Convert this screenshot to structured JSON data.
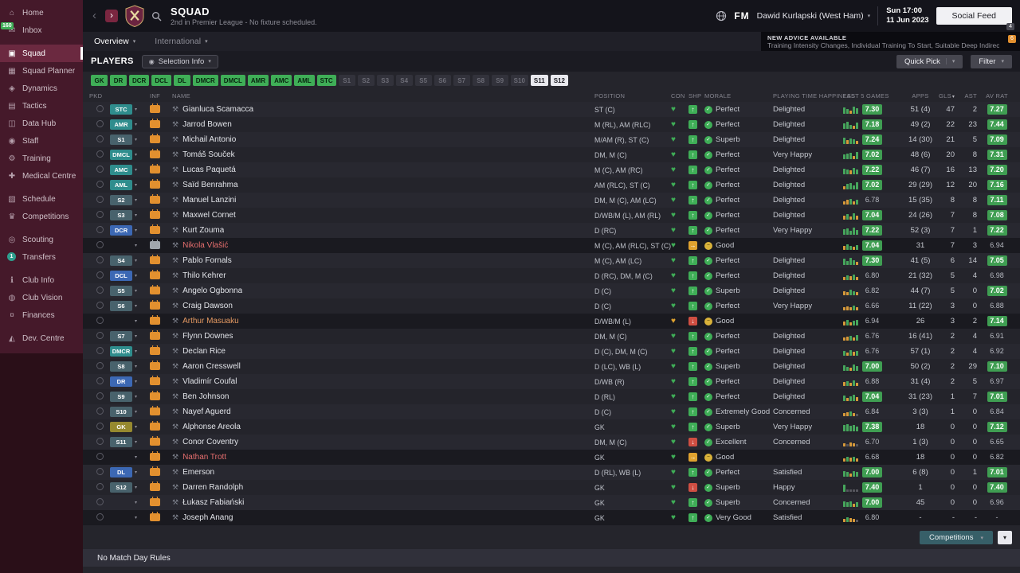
{
  "colors": {
    "claret": "#45192a",
    "accent_green": "#3fae57",
    "badge_green": "#3f9e52",
    "warn_orange": "#d79a3a",
    "alert_red": "#cf4e42",
    "def_blue": "#3c68b4",
    "att_teal": "#2f8d8d"
  },
  "topbar": {
    "title": "SQUAD",
    "subtitle": "2nd in Premier League - No fixture scheduled.",
    "fm": "FM",
    "manager": "Dawid Kurlapski (West Ham)",
    "time": "Sun 17:00",
    "date": "11 Jun 2023",
    "social": "Social Feed",
    "social_badge": "4"
  },
  "ticker": {
    "kicker": "NEW ADVICE AVAILABLE",
    "text": "Training Intensity Changes, Individual Training To Start, Suitable Deep Indirect Free-Kick Takers",
    "badge": "6"
  },
  "tabs": [
    {
      "label": "Overview"
    },
    {
      "label": "International"
    }
  ],
  "sidebar": {
    "items": [
      {
        "key": "home",
        "label": "Home",
        "icon": "⌂"
      },
      {
        "key": "inbox",
        "label": "Inbox",
        "icon": "✉",
        "badge": "160"
      },
      {
        "key": "squad",
        "label": "Squad",
        "icon": "▣",
        "selected": true,
        "gap": true
      },
      {
        "key": "squad-planner",
        "label": "Squad Planner",
        "icon": "▦"
      },
      {
        "key": "dynamics",
        "label": "Dynamics",
        "icon": "◈"
      },
      {
        "key": "tactics",
        "label": "Tactics",
        "icon": "▤"
      },
      {
        "key": "data-hub",
        "label": "Data Hub",
        "icon": "◫"
      },
      {
        "key": "staff",
        "label": "Staff",
        "icon": "◉"
      },
      {
        "key": "training",
        "label": "Training",
        "icon": "⚙"
      },
      {
        "key": "medical-centre",
        "label": "Medical Centre",
        "icon": "✚"
      },
      {
        "key": "schedule",
        "label": "Schedule",
        "icon": "▧",
        "gap": true
      },
      {
        "key": "competitions",
        "label": "Competitions",
        "icon": "♛"
      },
      {
        "key": "scouting",
        "label": "Scouting",
        "icon": "◎",
        "gap": true
      },
      {
        "key": "transfers",
        "label": "Transfers",
        "icon": "⇄",
        "badge": "1",
        "badge_circle": true
      },
      {
        "key": "club-info",
        "label": "Club Info",
        "icon": "ℹ",
        "gap": true
      },
      {
        "key": "club-vision",
        "label": "Club Vision",
        "icon": "◍"
      },
      {
        "key": "finances",
        "label": "Finances",
        "icon": "¤"
      },
      {
        "key": "dev-centre",
        "label": "Dev. Centre",
        "icon": "◭",
        "gap": true
      }
    ]
  },
  "players_bar": {
    "title": "PLAYERS",
    "selection": "Selection Info",
    "quick_pick": "Quick Pick",
    "filter": "Filter"
  },
  "filters": {
    "positions": [
      "GK",
      "DR",
      "DCR",
      "DCL",
      "DL",
      "DMCR",
      "DMCL",
      "AMR",
      "AMC",
      "AML",
      "STC"
    ],
    "subs_inactive": [
      "S1",
      "S2",
      "S3",
      "S4",
      "S5",
      "S6",
      "S7",
      "S8",
      "S9",
      "S10"
    ],
    "subs_selected": [
      "S11",
      "S12"
    ]
  },
  "table": {
    "columns": [
      "PKD",
      "INF",
      "NAME",
      "POSITION",
      "CON",
      "SHP",
      "MORALE",
      "PLAYING TIME HAPPINESS",
      "LAST 5 GAMES",
      "APPS",
      "GLS",
      "AST",
      "AV RAT"
    ],
    "rows": [
      {
        "pkd": "STC",
        "kind": "att",
        "inf": "holiday",
        "name": "Gianluca Scamacca",
        "name_color": "",
        "pos": "ST (C)",
        "con": "ok",
        "shp": "up",
        "morale": "Perfect",
        "tone": "good",
        "pt": "Delighted",
        "l5": "7.30",
        "bars": [
          "g8",
          "g6",
          "o4",
          "g9",
          "g7"
        ],
        "apps": "51 (4)",
        "gls": "47",
        "ast": "2",
        "avr": "7.27",
        "dim": false
      },
      {
        "pkd": "AMR",
        "kind": "att",
        "inf": "holiday",
        "name": "Jarrod Bowen",
        "name_color": "",
        "pos": "M (RL), AM (RLC)",
        "con": "ok",
        "shp": "up",
        "morale": "Perfect",
        "tone": "good",
        "pt": "Delighted",
        "l5": "7.18",
        "bars": [
          "g7",
          "g9",
          "g5",
          "o4",
          "g8"
        ],
        "apps": "49 (2)",
        "gls": "22",
        "ast": "23",
        "avr": "7.44",
        "dim": false
      },
      {
        "pkd": "S1",
        "kind": "sub",
        "inf": "holiday",
        "name": "Michail Antonio",
        "name_color": "",
        "pos": "M/AM (R), ST (C)",
        "con": "ok",
        "shp": "up",
        "morale": "Superb",
        "tone": "good",
        "pt": "Delighted",
        "l5": "7.24",
        "bars": [
          "g8",
          "o5",
          "g7",
          "g6",
          "o4"
        ],
        "apps": "14 (30)",
        "gls": "21",
        "ast": "5",
        "avr": "7.09",
        "dim": false
      },
      {
        "pkd": "DMCL",
        "kind": "att",
        "inf": "holiday",
        "name": "Tomáš Souček",
        "name_color": "",
        "pos": "DM, M (C)",
        "con": "ok",
        "shp": "up",
        "morale": "Perfect",
        "tone": "good",
        "pt": "Very Happy",
        "l5": "7.02",
        "bars": [
          "g6",
          "g7",
          "g8",
          "o4",
          "g9"
        ],
        "apps": "48 (6)",
        "gls": "20",
        "ast": "8",
        "avr": "7.31",
        "dim": false
      },
      {
        "pkd": "AMC",
        "kind": "att",
        "inf": "holiday",
        "name": "Lucas Paquetá",
        "name_color": "",
        "pos": "M (C), AM (RC)",
        "con": "ok",
        "shp": "up",
        "morale": "Perfect",
        "tone": "good",
        "pt": "Delighted",
        "l5": "7.22",
        "bars": [
          "g7",
          "g6",
          "o5",
          "g8",
          "g6"
        ],
        "apps": "46 (7)",
        "gls": "16",
        "ast": "13",
        "avr": "7.20",
        "dim": false
      },
      {
        "pkd": "AML",
        "kind": "att",
        "inf": "holiday",
        "name": "Saïd Benrahma",
        "name_color": "",
        "pos": "AM (RLC), ST (C)",
        "con": "ok",
        "shp": "up",
        "morale": "Perfect",
        "tone": "good",
        "pt": "Delighted",
        "l5": "7.02",
        "bars": [
          "o4",
          "g7",
          "g8",
          "g5",
          "g9"
        ],
        "apps": "29 (29)",
        "gls": "12",
        "ast": "20",
        "avr": "7.16",
        "dim": false
      },
      {
        "pkd": "S2",
        "kind": "sub",
        "inf": "holiday",
        "name": "Manuel Lanzini",
        "name_color": "",
        "pos": "DM, M (C), AM (LC)",
        "con": "ok",
        "shp": "up",
        "morale": "Perfect",
        "tone": "good",
        "pt": "Delighted",
        "l5": "6.78",
        "bars": [
          "o4",
          "o6",
          "g7",
          "o4",
          "g6"
        ],
        "apps": "15 (35)",
        "gls": "8",
        "ast": "8",
        "avr": "7.11",
        "dim": false
      },
      {
        "pkd": "S3",
        "kind": "sub",
        "inf": "holiday",
        "name": "Maxwel Cornet",
        "name_color": "",
        "pos": "D/WB/M (L), AM (RL)",
        "con": "ok",
        "shp": "up",
        "morale": "Perfect",
        "tone": "good",
        "pt": "Delighted",
        "l5": "7.04",
        "bars": [
          "o5",
          "g7",
          "o4",
          "g8",
          "o5"
        ],
        "apps": "24 (26)",
        "gls": "7",
        "ast": "8",
        "avr": "7.08",
        "dim": false
      },
      {
        "pkd": "DCR",
        "kind": "def",
        "inf": "holiday",
        "name": "Kurt Zouma",
        "name_color": "",
        "pos": "D (RC)",
        "con": "ok",
        "shp": "up",
        "morale": "Perfect",
        "tone": "good",
        "pt": "Very Happy",
        "l5": "7.22",
        "bars": [
          "g7",
          "g8",
          "g5",
          "g9",
          "g6"
        ],
        "apps": "52 (3)",
        "gls": "7",
        "ast": "1",
        "avr": "7.22",
        "dim": false
      },
      {
        "pkd": "",
        "kind": "none",
        "inf": "gray",
        "name": "Nikola Vlašić",
        "name_color": "#e56e6e",
        "pos": "M (C), AM (RLC), ST (C)",
        "con": "ok",
        "shp": "flat",
        "morale": "Good",
        "tone": "ok",
        "pt": "",
        "l5": "7.04",
        "bars": [
          "o5",
          "g7",
          "g5",
          "o4",
          "g6"
        ],
        "apps": "31",
        "gls": "7",
        "ast": "3",
        "avr": "6.94",
        "dim": true
      },
      {
        "pkd": "S4",
        "kind": "sub",
        "inf": "holiday",
        "name": "Pablo Fornals",
        "name_color": "",
        "pos": "M (C), AM (LC)",
        "con": "ok",
        "shp": "up",
        "morale": "Perfect",
        "tone": "good",
        "pt": "Delighted",
        "l5": "7.30",
        "bars": [
          "g8",
          "g5",
          "g9",
          "g6",
          "o4"
        ],
        "apps": "41 (5)",
        "gls": "6",
        "ast": "14",
        "avr": "7.05",
        "dim": false
      },
      {
        "pkd": "DCL",
        "kind": "def",
        "inf": "holiday",
        "name": "Thilo Kehrer",
        "name_color": "",
        "pos": "D (RC), DM, M (C)",
        "con": "ok",
        "shp": "up",
        "morale": "Perfect",
        "tone": "good",
        "pt": "Delighted",
        "l5": "6.80",
        "bars": [
          "o4",
          "g6",
          "o5",
          "g7",
          "o4"
        ],
        "apps": "21 (32)",
        "gls": "5",
        "ast": "4",
        "avr": "6.98",
        "dim": false
      },
      {
        "pkd": "S5",
        "kind": "sub",
        "inf": "holiday",
        "name": "Angelo Ogbonna",
        "name_color": "",
        "pos": "D (C)",
        "con": "ok",
        "shp": "up",
        "morale": "Superb",
        "tone": "good",
        "pt": "Delighted",
        "l5": "6.82",
        "bars": [
          "o5",
          "o4",
          "g7",
          "g5",
          "o4"
        ],
        "apps": "44 (7)",
        "gls": "5",
        "ast": "0",
        "avr": "7.02",
        "dim": false
      },
      {
        "pkd": "S6",
        "kind": "sub",
        "inf": "holiday",
        "name": "Craig Dawson",
        "name_color": "",
        "pos": "D (C)",
        "con": "ok",
        "shp": "up",
        "morale": "Perfect",
        "tone": "good",
        "pt": "Very Happy",
        "l5": "6.66",
        "bars": [
          "o4",
          "o5",
          "o4",
          "g6",
          "o4"
        ],
        "apps": "11 (22)",
        "gls": "3",
        "ast": "0",
        "avr": "6.88",
        "dim": false
      },
      {
        "pkd": "",
        "kind": "none",
        "inf": "holiday",
        "name": "Arthur Masuaku",
        "name_color": "#e59a62",
        "pos": "D/WB/M (L)",
        "con": "warn",
        "shp": "down",
        "morale": "Good",
        "tone": "ok",
        "pt": "",
        "l5": "6.94",
        "bars": [
          "o5",
          "g7",
          "o4",
          "g6",
          "g7"
        ],
        "apps": "26",
        "gls": "3",
        "ast": "2",
        "avr": "7.14",
        "dim": true
      },
      {
        "pkd": "S7",
        "kind": "sub",
        "inf": "holiday",
        "name": "Flynn Downes",
        "name_color": "",
        "pos": "DM, M (C)",
        "con": "ok",
        "shp": "up",
        "morale": "Perfect",
        "tone": "good",
        "pt": "Delighted",
        "l5": "6.76",
        "bars": [
          "o4",
          "o5",
          "g6",
          "o4",
          "g7"
        ],
        "apps": "16 (41)",
        "gls": "2",
        "ast": "4",
        "avr": "6.91",
        "dim": false
      },
      {
        "pkd": "DMCR",
        "kind": "att",
        "inf": "holiday",
        "name": "Declan Rice",
        "name_color": "",
        "pos": "D (C), DM, M (C)",
        "con": "ok",
        "shp": "up",
        "mor​ale_x": "",
        "morale": "Perfect",
        "tone": "good",
        "pt": "Delighted",
        "l5": "6.76",
        "bars": [
          "g6",
          "o4",
          "g7",
          "o5",
          "g6"
        ],
        "apps": "57 (1)",
        "gls": "2",
        "ast": "4",
        "avr": "6.92",
        "dim": false
      },
      {
        "pkd": "S8",
        "kind": "sub",
        "inf": "holiday",
        "name": "Aaron Cresswell",
        "name_color": "",
        "pos": "D (LC), WB (L)",
        "con": "ok",
        "shp": "up",
        "morale": "Superb",
        "tone": "good",
        "pt": "Delighted",
        "l5": "7.00",
        "bars": [
          "g7",
          "g5",
          "o4",
          "g8",
          "g6"
        ],
        "apps": "50 (2)",
        "gls": "2",
        "ast": "29",
        "avr": "7.10",
        "dim": false
      },
      {
        "pkd": "DR",
        "kind": "def",
        "inf": "holiday",
        "name": "Vladimír Coufal",
        "name_color": "",
        "pos": "D/WB (R)",
        "con": "ok",
        "shp": "up",
        "morale": "Perfect",
        "tone": "good",
        "pt": "Delighted",
        "l5": "6.88",
        "bars": [
          "o5",
          "g6",
          "o4",
          "g7",
          "o4"
        ],
        "apps": "31 (4)",
        "gls": "2",
        "ast": "5",
        "avr": "6.97",
        "dim": false
      },
      {
        "pkd": "S9",
        "kind": "sub",
        "inf": "holiday",
        "name": "Ben Johnson",
        "name_color": "",
        "pos": "D (RL)",
        "con": "ok",
        "shp": "up",
        "morale": "Perfect",
        "tone": "good",
        "pt": "Delighted",
        "l5": "7.04",
        "bars": [
          "g7",
          "o4",
          "g6",
          "g8",
          "o5"
        ],
        "apps": "31 (23)",
        "gls": "1",
        "ast": "7",
        "avr": "7.01",
        "dim": false
      },
      {
        "pkd": "S10",
        "kind": "sub",
        "inf": "holiday",
        "name": "Nayef Aguerd",
        "name_color": "",
        "pos": "D (C)",
        "con": "ok",
        "shp": "up",
        "morale": "Extremely Good",
        "tone": "good",
        "pt": "Concerned",
        "l5": "6.84",
        "bars": [
          "o4",
          "o5",
          "g6",
          "o4",
          "d3"
        ],
        "apps": "3 (3)",
        "gls": "1",
        "ast": "0",
        "avr": "6.84",
        "dim": false
      },
      {
        "pkd": "GK",
        "kind": "gk",
        "inf": "holiday",
        "name": "Alphonse Areola",
        "name_color": "",
        "pos": "GK",
        "con": "ok",
        "shp": "up",
        "morale": "Superb",
        "tone": "good",
        "pt": "Very Happy",
        "l5": "7.38",
        "bars": [
          "g8",
          "g9",
          "g7",
          "g8",
          "g6"
        ],
        "apps": "18",
        "gls": "0",
        "ast": "0",
        "avr": "7.12",
        "dim": false
      },
      {
        "pkd": "S11",
        "kind": "sub",
        "inf": "holiday",
        "name": "Conor Coventry",
        "name_color": "",
        "pos": "DM, M (C)",
        "con": "ok",
        "shp": "down",
        "morale": "Excellent",
        "tone": "good",
        "pt": "Concerned",
        "l5": "6.70",
        "bars": [
          "o4",
          "d3",
          "o5",
          "o4",
          "d3"
        ],
        "apps": "1 (3)",
        "gls": "0",
        "ast": "0",
        "avr": "6.65",
        "dim": false
      },
      {
        "pkd": "",
        "kind": "none",
        "inf": "holiday",
        "name": "Nathan Trott",
        "name_color": "#e56e6e",
        "pos": "GK",
        "con": "ok",
        "shp": "flat",
        "morale": "Good",
        "tone": "ok",
        "pt": "",
        "l5": "6.68",
        "bars": [
          "o4",
          "g6",
          "o5",
          "g6",
          "o4"
        ],
        "apps": "18",
        "gls": "0",
        "ast": "0",
        "avr": "6.82",
        "dim": true
      },
      {
        "pkd": "DL",
        "kind": "def",
        "inf": "holiday",
        "name": "Emerson",
        "name_color": "",
        "pos": "D (RL), WB (L)",
        "con": "ok",
        "shp": "up",
        "morale": "Perfect",
        "tone": "good",
        "pt": "Satisfied",
        "l5": "7.00",
        "bars": [
          "g7",
          "g6",
          "o4",
          "g7",
          "g6"
        ],
        "apps": "6 (8)",
        "gls": "0",
        "ast": "1",
        "avr": "7.01",
        "dim": false
      },
      {
        "pkd": "S12",
        "kind": "sub",
        "inf": "holiday",
        "name": "Darren Randolph",
        "name_color": "",
        "pos": "GK",
        "con": "ok",
        "shp": "down",
        "morale": "Superb",
        "tone": "good",
        "pt": "Happy",
        "l5": "7.40",
        "bars": [
          "g9",
          "d3",
          "d3",
          "d3",
          "d3"
        ],
        "apps": "1",
        "gls": "0",
        "ast": "0",
        "avr": "7.40",
        "dim": false
      },
      {
        "pkd": "",
        "kind": "none",
        "inf": "holiday",
        "name": "Łukasz Fabiański",
        "name_color": "",
        "pos": "GK",
        "con": "ok",
        "shp": "up",
        "morale": "Superb",
        "tone": "good",
        "pt": "Concerned",
        "l5": "7.00",
        "bars": [
          "g7",
          "g6",
          "g7",
          "o4",
          "g6"
        ],
        "apps": "45",
        "gls": "0",
        "ast": "0",
        "avr": "6.96",
        "dim": false
      },
      {
        "pkd": "",
        "kind": "none",
        "inf": "holiday",
        "name": "Joseph Anang",
        "name_color": "",
        "pos": "GK",
        "con": "ok",
        "shp": "up",
        "morale": "Very Good",
        "tone": "good",
        "pt": "Satisfied",
        "l5": "6.80",
        "bars": [
          "o4",
          "g6",
          "o5",
          "o4",
          "d3"
        ],
        "apps": "-",
        "gls": "-",
        "ast": "-",
        "avr": "-",
        "dim": true
      }
    ]
  },
  "footer": {
    "note": "No Match Day Rules",
    "competitions": "Competitions"
  }
}
